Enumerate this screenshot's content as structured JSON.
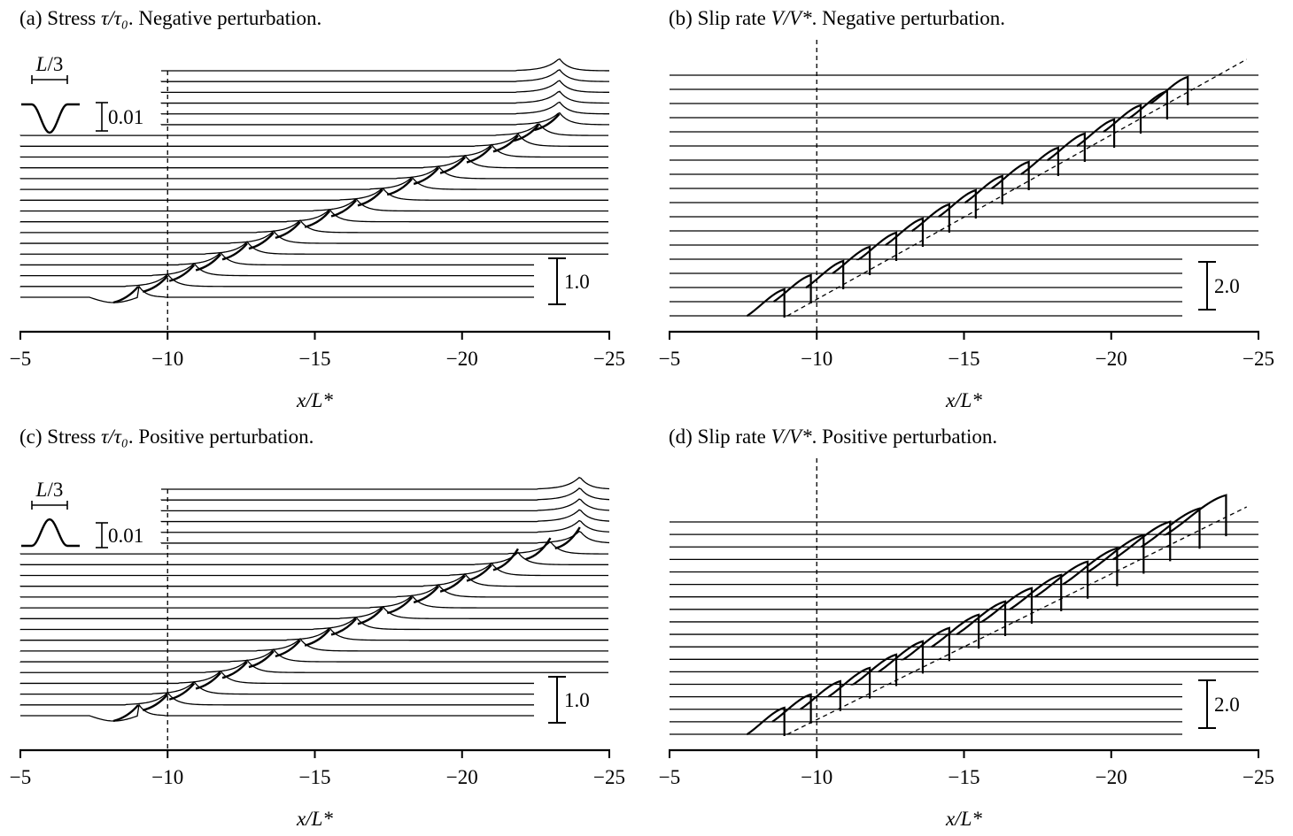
{
  "chart_data": [
    {
      "id": "a",
      "type": "line",
      "title": "(a) Stress τ/τ₀. Negative perturbation.",
      "xlabel": "x/L*",
      "x_ticks": [
        "−5",
        "−10",
        "−15",
        "−20",
        "−25"
      ],
      "xlim": [
        -5,
        -25
      ],
      "vline_x": -10,
      "scale_bar": "1.0",
      "inset_scale": "0.01",
      "inset_length": "L/3",
      "perturbation": "negative",
      "n_traces": 22,
      "front_x": [
        -9.0,
        -10.0,
        -10.9,
        -11.8,
        -12.7,
        -13.6,
        -14.5,
        -15.5,
        -16.4,
        -17.3,
        -18.3,
        -19.2,
        -20.1,
        -21.0,
        -21.9,
        -22.6,
        -23.3
      ]
    },
    {
      "id": "b",
      "type": "line",
      "title": "(b) Slip rate V/V*. Negative perturbation.",
      "xlabel": "x/L*",
      "x_ticks": [
        "−5",
        "−10",
        "−15",
        "−20",
        "−25"
      ],
      "xlim": [
        -5,
        -25
      ],
      "vline_x": -10,
      "scale_bar": "2.0",
      "perturbation": "negative",
      "n_traces": 18,
      "front_x": [
        -8.9,
        -9.8,
        -10.9,
        -11.8,
        -12.7,
        -13.6,
        -14.5,
        -15.4,
        -16.3,
        -17.2,
        -18.2,
        -19.1,
        -20.1,
        -21.0,
        -21.9,
        -22.6
      ]
    },
    {
      "id": "c",
      "type": "line",
      "title": "(c) Stress τ/τ₀. Positive perturbation.",
      "xlabel": "x/L*",
      "x_ticks": [
        "−5",
        "−10",
        "−15",
        "−20",
        "−25"
      ],
      "xlim": [
        -5,
        -25
      ],
      "vline_x": -10,
      "scale_bar": "1.0",
      "inset_scale": "0.01",
      "inset_length": "L/3",
      "perturbation": "positive",
      "n_traces": 22,
      "front_x": [
        -9.0,
        -10.0,
        -10.9,
        -11.8,
        -12.7,
        -13.6,
        -14.5,
        -15.5,
        -16.4,
        -17.3,
        -18.3,
        -19.2,
        -20.1,
        -21.0,
        -21.9,
        -23.0,
        -24.0
      ]
    },
    {
      "id": "d",
      "type": "line",
      "title": "(d) Slip rate V/V*. Positive perturbation.",
      "xlabel": "x/L*",
      "x_ticks": [
        "−5",
        "−10",
        "−15",
        "−20",
        "−25"
      ],
      "xlim": [
        -5,
        -25
      ],
      "vline_x": -10,
      "scale_bar": "2.0",
      "perturbation": "positive",
      "n_traces": 18,
      "front_x": [
        -8.9,
        -9.8,
        -10.8,
        -11.8,
        -12.7,
        -13.6,
        -14.5,
        -15.5,
        -16.4,
        -17.3,
        -18.3,
        -19.2,
        -20.2,
        -21.1,
        -22.0,
        -23.0,
        -23.9
      ]
    }
  ]
}
